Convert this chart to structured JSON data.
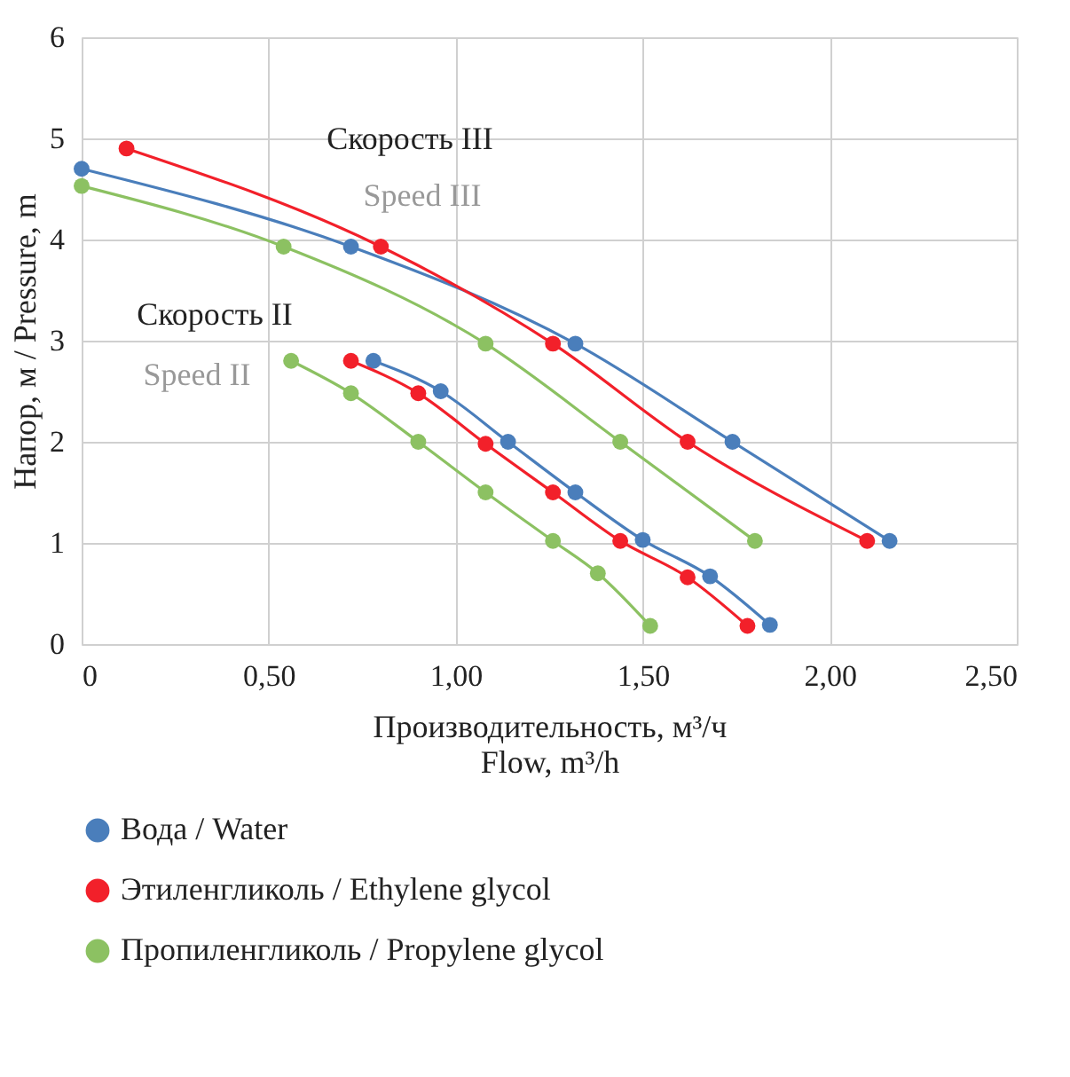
{
  "chart_data": {
    "type": "line",
    "xlabel": "Производительность, м³/ч\nFlow, m³/h",
    "ylabel": "Напор, м / Pressure, m",
    "xlim": [
      0,
      2.5
    ],
    "ylim": [
      0,
      6
    ],
    "xticks": [
      {
        "value": 0,
        "label": "0"
      },
      {
        "value": 0.5,
        "label": "0,50"
      },
      {
        "value": 1,
        "label": "1,00"
      },
      {
        "value": 1.5,
        "label": "1,50"
      },
      {
        "value": 2,
        "label": "2,00"
      },
      {
        "value": 2.5,
        "label": "2,50"
      }
    ],
    "yticks": [
      0,
      1,
      2,
      3,
      4,
      5,
      6
    ],
    "grid": true,
    "legend": "bottom",
    "marker": "circle",
    "line_style": "solid",
    "annotations": [
      "Скорость III",
      "Speed III",
      "Скорость II",
      "Speed II"
    ],
    "series": [
      {
        "name": "Вода / Water",
        "color": "#4a7ebb",
        "x": [
          0,
          0.72,
          1.32,
          1.74,
          2.16
        ],
        "values": [
          4.7,
          3.93,
          2.97,
          2.0,
          1.02
        ]
      },
      {
        "name": "Этиленгликоль / Ethylene glycol",
        "color": "#f2202a",
        "x": [
          0.12,
          0.8,
          1.26,
          1.62,
          2.1
        ],
        "values": [
          4.9,
          3.93,
          2.97,
          2.0,
          1.02
        ]
      },
      {
        "name": "Пропиленгликоль / Propylene glycol",
        "color": "#8cc162",
        "x": [
          0,
          0.54,
          1.08,
          1.44,
          1.8
        ],
        "values": [
          4.53,
          3.93,
          2.97,
          2.0,
          1.02
        ]
      },
      {
        "color": "#4a7ebb",
        "x": [
          0.78,
          0.96,
          1.14,
          1.32,
          1.5,
          1.68,
          1.84
        ],
        "values": [
          2.8,
          2.5,
          2.0,
          1.5,
          1.03,
          0.67,
          0.19
        ]
      },
      {
        "color": "#f2202a",
        "x": [
          0.72,
          0.9,
          1.08,
          1.26,
          1.44,
          1.62,
          1.78
        ],
        "values": [
          2.8,
          2.48,
          1.98,
          1.5,
          1.02,
          0.66,
          0.18
        ]
      },
      {
        "color": "#8cc162",
        "x": [
          0.56,
          0.72,
          0.9,
          1.08,
          1.26,
          1.38,
          1.52
        ],
        "values": [
          2.8,
          2.48,
          2.0,
          1.5,
          1.02,
          0.7,
          0.18
        ]
      }
    ]
  }
}
